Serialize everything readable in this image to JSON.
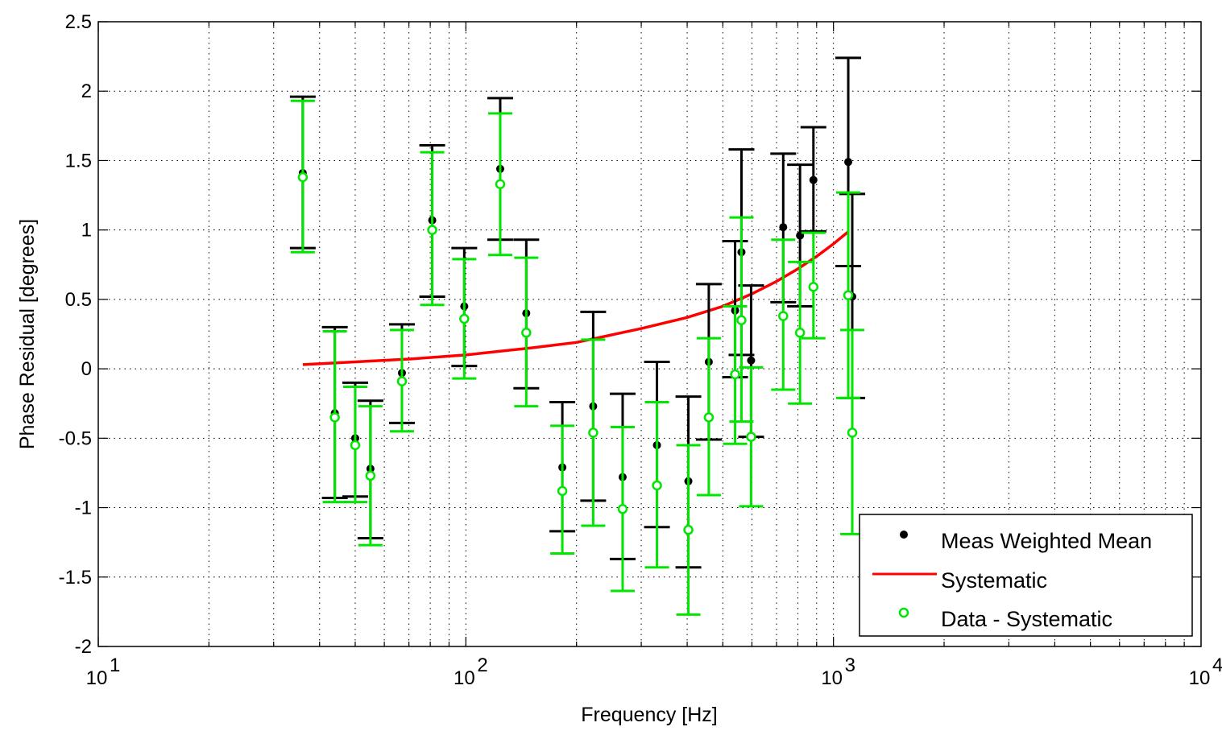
{
  "chart_data": {
    "type": "scatter",
    "title": "",
    "xlabel": "Frequency [Hz]",
    "ylabel": "Phase Residual [degrees]",
    "xscale": "log",
    "xlim": [
      10,
      10000
    ],
    "ylim": [
      -2,
      2.5
    ],
    "grid": true,
    "legend_position": "bottom-right",
    "x_tick_labels": [
      {
        "base": "10",
        "exp": "1"
      },
      {
        "base": "10",
        "exp": "2"
      },
      {
        "base": "10",
        "exp": "3"
      },
      {
        "base": "10",
        "exp": "4"
      }
    ],
    "y_tick_labels": [
      "2.5",
      "2",
      "1.5",
      "1",
      "0.5",
      "0",
      "-0.5",
      "-1",
      "-1.5",
      "-2"
    ],
    "series": [
      {
        "name": "Meas Weighted Mean",
        "color": "#000000",
        "marker": "filled-dot",
        "points": [
          {
            "x": 36,
            "y": 1.41,
            "lo": 0.87,
            "hi": 1.96
          },
          {
            "x": 44,
            "y": -0.32,
            "lo": -0.93,
            "hi": 0.3
          },
          {
            "x": 50,
            "y": -0.5,
            "lo": -0.92,
            "hi": -0.1
          },
          {
            "x": 55,
            "y": -0.72,
            "lo": -1.22,
            "hi": -0.23
          },
          {
            "x": 67,
            "y": -0.03,
            "lo": -0.39,
            "hi": 0.32
          },
          {
            "x": 81,
            "y": 1.07,
            "lo": 0.52,
            "hi": 1.61
          },
          {
            "x": 99,
            "y": 0.45,
            "lo": 0.02,
            "hi": 0.87
          },
          {
            "x": 124,
            "y": 1.44,
            "lo": 0.93,
            "hi": 1.95
          },
          {
            "x": 146,
            "y": 0.4,
            "lo": -0.14,
            "hi": 0.93
          },
          {
            "x": 183,
            "y": -0.71,
            "lo": -1.17,
            "hi": -0.24
          },
          {
            "x": 222,
            "y": -0.27,
            "lo": -0.95,
            "hi": 0.41
          },
          {
            "x": 267,
            "y": -0.78,
            "lo": -1.37,
            "hi": -0.18
          },
          {
            "x": 331,
            "y": -0.55,
            "lo": -1.14,
            "hi": 0.05
          },
          {
            "x": 403,
            "y": -0.81,
            "lo": -1.43,
            "hi": -0.2
          },
          {
            "x": 458,
            "y": 0.05,
            "lo": -0.51,
            "hi": 0.61
          },
          {
            "x": 540,
            "y": 0.42,
            "lo": -0.06,
            "hi": 0.92
          },
          {
            "x": 562,
            "y": 0.84,
            "lo": 0.1,
            "hi": 1.58
          },
          {
            "x": 597,
            "y": 0.06,
            "lo": -0.49,
            "hi": 0.6
          },
          {
            "x": 730,
            "y": 1.02,
            "lo": 0.48,
            "hi": 1.55
          },
          {
            "x": 811,
            "y": 0.96,
            "lo": 0.45,
            "hi": 1.47
          },
          {
            "x": 882,
            "y": 1.36,
            "lo": 0.99,
            "hi": 1.74
          },
          {
            "x": 1097,
            "y": 1.49,
            "lo": 0.74,
            "hi": 2.24
          },
          {
            "x": 1125,
            "y": 0.52,
            "lo": -0.21,
            "hi": 1.26
          }
        ]
      },
      {
        "name": "Systematic",
        "color": "#ff0000",
        "marker": "line",
        "points": [
          {
            "x": 36,
            "y": 0.03
          },
          {
            "x": 50,
            "y": 0.05
          },
          {
            "x": 70,
            "y": 0.07
          },
          {
            "x": 100,
            "y": 0.1
          },
          {
            "x": 150,
            "y": 0.15
          },
          {
            "x": 200,
            "y": 0.19
          },
          {
            "x": 300,
            "y": 0.29
          },
          {
            "x": 400,
            "y": 0.37
          },
          {
            "x": 500,
            "y": 0.45
          },
          {
            "x": 600,
            "y": 0.54
          },
          {
            "x": 700,
            "y": 0.63
          },
          {
            "x": 800,
            "y": 0.72
          },
          {
            "x": 900,
            "y": 0.81
          },
          {
            "x": 1000,
            "y": 0.9
          },
          {
            "x": 1100,
            "y": 0.99
          }
        ]
      },
      {
        "name": "Data - Systematic",
        "color": "#00e600",
        "marker": "open-circle",
        "points": [
          {
            "x": 36,
            "y": 1.38,
            "lo": 0.84,
            "hi": 1.93
          },
          {
            "x": 44,
            "y": -0.35,
            "lo": -0.96,
            "hi": 0.27
          },
          {
            "x": 50,
            "y": -0.55,
            "lo": -0.96,
            "hi": -0.13
          },
          {
            "x": 55,
            "y": -0.77,
            "lo": -1.27,
            "hi": -0.27
          },
          {
            "x": 67,
            "y": -0.09,
            "lo": -0.45,
            "hi": 0.28
          },
          {
            "x": 81,
            "y": 1.0,
            "lo": 0.46,
            "hi": 1.56
          },
          {
            "x": 99,
            "y": 0.36,
            "lo": -0.07,
            "hi": 0.79
          },
          {
            "x": 124,
            "y": 1.33,
            "lo": 0.82,
            "hi": 1.84
          },
          {
            "x": 146,
            "y": 0.26,
            "lo": -0.27,
            "hi": 0.8
          },
          {
            "x": 183,
            "y": -0.88,
            "lo": -1.33,
            "hi": -0.41
          },
          {
            "x": 222,
            "y": -0.46,
            "lo": -1.13,
            "hi": 0.21
          },
          {
            "x": 267,
            "y": -1.01,
            "lo": -1.6,
            "hi": -0.42
          },
          {
            "x": 331,
            "y": -0.84,
            "lo": -1.43,
            "hi": -0.24
          },
          {
            "x": 403,
            "y": -1.16,
            "lo": -1.77,
            "hi": -0.55
          },
          {
            "x": 458,
            "y": -0.35,
            "lo": -0.91,
            "hi": 0.22
          },
          {
            "x": 540,
            "y": -0.04,
            "lo": -0.54,
            "hi": 0.45
          },
          {
            "x": 562,
            "y": 0.35,
            "lo": -0.38,
            "hi": 1.09
          },
          {
            "x": 597,
            "y": -0.49,
            "lo": -0.99,
            "hi": 0.01
          },
          {
            "x": 730,
            "y": 0.38,
            "lo": -0.15,
            "hi": 0.93
          },
          {
            "x": 811,
            "y": 0.26,
            "lo": -0.25,
            "hi": 0.77
          },
          {
            "x": 882,
            "y": 0.59,
            "lo": 0.22,
            "hi": 0.98
          },
          {
            "x": 1097,
            "y": 0.53,
            "lo": -0.21,
            "hi": 1.27
          },
          {
            "x": 1125,
            "y": -0.46,
            "lo": -1.19,
            "hi": 0.28
          }
        ]
      }
    ]
  }
}
